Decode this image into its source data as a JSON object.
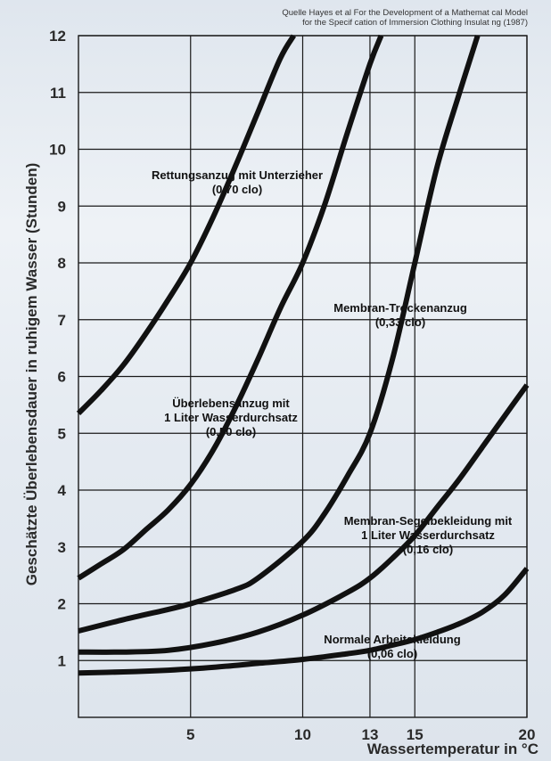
{
  "source_note": {
    "line1": "Quelle  Hayes et al   For the Development of a Mathemat cal Model",
    "line2": "for the Specif cation of Immersion Clothing Insulat ng (1987)"
  },
  "chart_data": {
    "type": "line",
    "xlabel": "Wassertemperatur in °C",
    "ylabel": "Geschätzte Überlebensdauer in ruhigem Wasser (Stunden)",
    "xlim": [
      0,
      20
    ],
    "ylim": [
      0,
      12
    ],
    "xticks": [
      5,
      10,
      13,
      15,
      20
    ],
    "yticks": [
      1,
      2,
      3,
      4,
      5,
      6,
      7,
      8,
      9,
      10,
      11,
      12
    ],
    "x_gridlines": [
      5,
      10,
      13,
      15,
      20
    ],
    "y_gridlines": [
      1,
      2,
      3,
      4,
      5,
      6,
      7,
      8,
      9,
      10,
      11,
      12
    ],
    "series": [
      {
        "annotation": [
          "Rettungsanzug mit Unterzieher",
          "(0,70 clo)"
        ],
        "points": [
          [
            0,
            5.35
          ],
          [
            1,
            5.75
          ],
          [
            2,
            6.2
          ],
          [
            3,
            6.75
          ],
          [
            4,
            7.35
          ],
          [
            5,
            8.0
          ],
          [
            6,
            8.8
          ],
          [
            7,
            9.7
          ],
          [
            8,
            10.65
          ],
          [
            9,
            11.6
          ],
          [
            9.6,
            12.0
          ]
        ]
      },
      {
        "annotation": [
          "Überlebensanzug mit",
          "1 Liter Wasserdurchsatz",
          "(0,50 clo)"
        ],
        "points": [
          [
            0,
            2.45
          ],
          [
            1,
            2.7
          ],
          [
            2,
            2.95
          ],
          [
            3,
            3.3
          ],
          [
            4,
            3.65
          ],
          [
            5,
            4.1
          ],
          [
            6,
            4.7
          ],
          [
            7,
            5.45
          ],
          [
            8,
            6.3
          ],
          [
            9,
            7.2
          ],
          [
            10,
            8.0
          ],
          [
            11,
            9.05
          ],
          [
            12,
            10.3
          ],
          [
            13,
            11.5
          ],
          [
            13.5,
            12.0
          ]
        ]
      },
      {
        "annotation": [
          "Membran-Trockenanzug",
          "(0,33 clo)"
        ],
        "points": [
          [
            0,
            1.52
          ],
          [
            2,
            1.72
          ],
          [
            4,
            1.9
          ],
          [
            5,
            2.0
          ],
          [
            7,
            2.25
          ],
          [
            8,
            2.45
          ],
          [
            10,
            3.1
          ],
          [
            11,
            3.6
          ],
          [
            12,
            4.25
          ],
          [
            13,
            5.0
          ],
          [
            14,
            6.3
          ],
          [
            15,
            8.0
          ],
          [
            16,
            9.7
          ],
          [
            17,
            11.0
          ],
          [
            17.8,
            12.0
          ]
        ]
      },
      {
        "annotation": [
          "Membran-Segelbekleidung mit",
          "1 Liter Wasserdurchsatz",
          "(0,16 clo)"
        ],
        "points": [
          [
            0,
            1.15
          ],
          [
            2,
            1.15
          ],
          [
            4,
            1.18
          ],
          [
            6,
            1.3
          ],
          [
            8,
            1.5
          ],
          [
            10,
            1.8
          ],
          [
            12,
            2.2
          ],
          [
            13,
            2.45
          ],
          [
            14,
            2.8
          ],
          [
            15,
            3.2
          ],
          [
            16,
            3.7
          ],
          [
            17,
            4.2
          ],
          [
            18,
            4.75
          ],
          [
            19,
            5.3
          ],
          [
            20,
            5.85
          ]
        ]
      },
      {
        "annotation": [
          "Normale Arbeitskleidung",
          "(0,06 clo)"
        ],
        "points": [
          [
            0,
            0.78
          ],
          [
            2,
            0.8
          ],
          [
            4,
            0.83
          ],
          [
            6,
            0.88
          ],
          [
            8,
            0.95
          ],
          [
            10,
            1.02
          ],
          [
            12,
            1.12
          ],
          [
            13,
            1.18
          ],
          [
            14,
            1.27
          ],
          [
            15,
            1.37
          ],
          [
            16,
            1.5
          ],
          [
            17,
            1.65
          ],
          [
            18,
            1.85
          ],
          [
            19,
            2.15
          ],
          [
            20,
            2.62
          ]
        ]
      }
    ]
  }
}
